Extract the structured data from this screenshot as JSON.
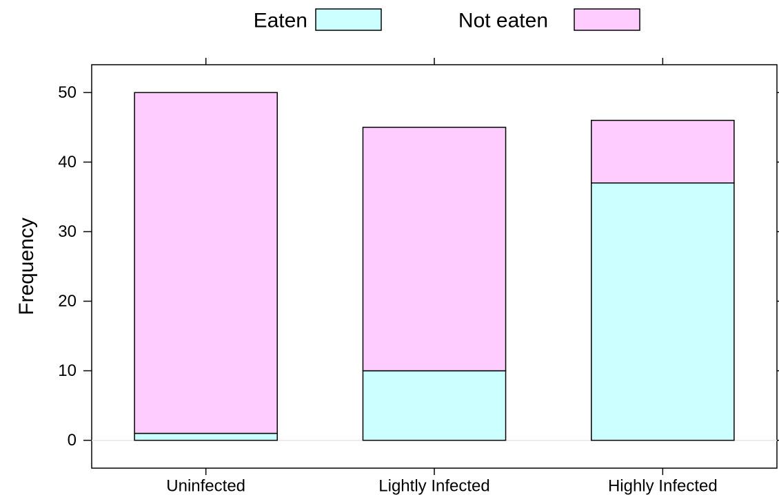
{
  "chart_data": {
    "type": "bar",
    "stacked": true,
    "title": "",
    "xlabel": "",
    "ylabel": "Frequency",
    "categories": [
      "Uninfected",
      "Lightly Infected",
      "Highly Infected"
    ],
    "series": [
      {
        "name": "Eaten",
        "values": [
          1,
          10,
          37
        ],
        "color": "#ccffff"
      },
      {
        "name": "Not eaten",
        "values": [
          49,
          35,
          9
        ],
        "color": "#ffccff"
      }
    ],
    "ylim": [
      -4,
      54
    ],
    "yticks": [
      0,
      10,
      20,
      30,
      40,
      50
    ],
    "legend_position": "top",
    "grid": false,
    "reference_line": {
      "y": 0,
      "color": "#e6e6e6"
    }
  }
}
